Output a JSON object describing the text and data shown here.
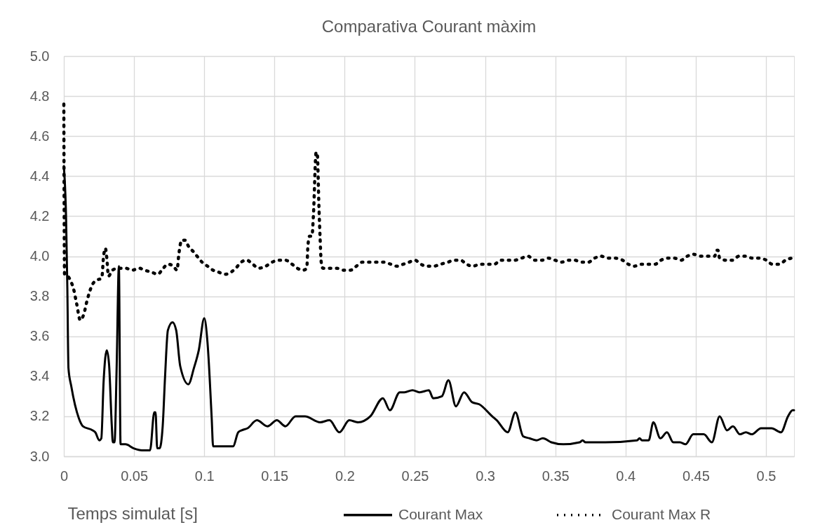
{
  "chart_data": {
    "type": "line",
    "title": "Comparativa Courant màxim",
    "xlabel": "Temps simulat [s]",
    "xlim": [
      0,
      0.52
    ],
    "xticks": [
      0,
      0.05,
      0.1,
      0.15,
      0.2,
      0.25,
      0.3,
      0.35,
      0.4,
      0.45,
      0.5
    ],
    "ylim": [
      3,
      5
    ],
    "yticks": [
      {
        "value": 3,
        "label": "3.0"
      },
      3.2,
      3.4,
      3.6,
      3.8,
      {
        "value": 4,
        "label": "4.0"
      },
      4.2,
      4.4,
      4.6,
      4.8,
      {
        "value": 5,
        "label": "5.0"
      }
    ],
    "grid": true,
    "legend": "bottom",
    "series": [
      {
        "name": "Courant Max",
        "color": "#000000",
        "line_style": "solid",
        "x": [
          0,
          0.0016,
          0.0025,
          0.0033,
          0.0053,
          0.0107,
          0.0136,
          0.0205,
          0.0224,
          0.0253,
          0.0267,
          0.0283,
          0.0306,
          0.0322,
          0.0341,
          0.0349,
          0.0361,
          0.0376,
          0.0392,
          0.0404,
          0.0439,
          0.0497,
          0.0556,
          0.0614,
          0.0644,
          0.0653,
          0.0665,
          0.0682,
          0.0704,
          0.0721,
          0.0741,
          0.0774,
          0.08,
          0.0829,
          0.0887,
          0.0926,
          0.0961,
          0.1,
          0.1023,
          0.1053,
          0.1063,
          0.1141,
          0.1205,
          0.1242,
          0.1267,
          0.1308,
          0.1375,
          0.145,
          0.1517,
          0.1578,
          0.165,
          0.1717,
          0.1825,
          0.1892,
          0.1962,
          0.2033,
          0.2095,
          0.2183,
          0.2272,
          0.2322,
          0.2392,
          0.2425,
          0.2483,
          0.2533,
          0.26,
          0.263,
          0.2692,
          0.2739,
          0.2792,
          0.285,
          0.2908,
          0.2958,
          0.305,
          0.3083,
          0.3161,
          0.3216,
          0.3271,
          0.3316,
          0.3366,
          0.3411,
          0.3471,
          0.3557,
          0.3674,
          0.3694,
          0.3715,
          0.3857,
          0.4082,
          0.41,
          0.4117,
          0.4165,
          0.4198,
          0.4248,
          0.4295,
          0.434,
          0.4387,
          0.4427,
          0.4482,
          0.4557,
          0.4615,
          0.467,
          0.4723,
          0.4765,
          0.4815,
          0.4857,
          0.4898,
          0.4965,
          0.504,
          0.5107,
          0.5157,
          0.519,
          0.52
        ],
        "values": [
          4.45,
          4.19,
          3.84,
          3.44,
          3.35,
          3.19,
          3.15,
          3.13,
          3.12,
          3.08,
          3.09,
          3.37,
          3.53,
          3.46,
          3.16,
          3.07,
          3.07,
          3.44,
          3.95,
          3.06,
          3.06,
          3.04,
          3.03,
          3.03,
          3.22,
          3.22,
          3.04,
          3.04,
          3.15,
          3.4,
          3.63,
          3.67,
          3.63,
          3.45,
          3.36,
          3.44,
          3.53,
          3.69,
          3.57,
          3.19,
          3.05,
          3.05,
          3.05,
          3.12,
          3.13,
          3.14,
          3.18,
          3.15,
          3.18,
          3.15,
          3.2,
          3.2,
          3.17,
          3.18,
          3.12,
          3.18,
          3.17,
          3.2,
          3.29,
          3.23,
          3.32,
          3.32,
          3.33,
          3.32,
          3.33,
          3.29,
          3.3,
          3.38,
          3.25,
          3.32,
          3.27,
          3.26,
          3.2,
          3.18,
          3.12,
          3.22,
          3.1,
          3.09,
          3.08,
          3.09,
          3.07,
          3.06,
          3.07,
          3.08,
          3.07,
          3.07,
          3.08,
          3.09,
          3.08,
          3.08,
          3.17,
          3.09,
          3.12,
          3.07,
          3.07,
          3.06,
          3.11,
          3.11,
          3.07,
          3.2,
          3.13,
          3.15,
          3.11,
          3.12,
          3.11,
          3.14,
          3.14,
          3.12,
          3.2,
          3.23,
          3.23
        ]
      },
      {
        "name": "Courant Max R",
        "color": "#000000",
        "line_style": "dotted",
        "x": [
          0,
          0.0005,
          0.0029,
          0.0053,
          0.0068,
          0.0092,
          0.0117,
          0.0142,
          0.0166,
          0.0205,
          0.0234,
          0.027,
          0.0283,
          0.0296,
          0.0306,
          0.0318,
          0.0345,
          0.039,
          0.0439,
          0.0487,
          0.0536,
          0.0575,
          0.0624,
          0.0669,
          0.0708,
          0.0741,
          0.078,
          0.0806,
          0.0819,
          0.0839,
          0.0864,
          0.0887,
          0.0926,
          0.0985,
          0.1024,
          0.1063,
          0.1102,
          0.1151,
          0.119,
          0.1225,
          0.1262,
          0.1303,
          0.1345,
          0.1388,
          0.1438,
          0.1483,
          0.1528,
          0.1578,
          0.1625,
          0.1662,
          0.1703,
          0.173,
          0.1738,
          0.175,
          0.1767,
          0.1777,
          0.1797,
          0.1805,
          0.1817,
          0.1825,
          0.1833,
          0.1845,
          0.1892,
          0.1942,
          0.1992,
          0.2042,
          0.2083,
          0.2125,
          0.2175,
          0.2225,
          0.2278,
          0.2328,
          0.2372,
          0.2417,
          0.2458,
          0.25,
          0.2542,
          0.2583,
          0.2633,
          0.2683,
          0.2734,
          0.2779,
          0.2825,
          0.2867,
          0.2913,
          0.2963,
          0.3017,
          0.3067,
          0.3108,
          0.3161,
          0.3211,
          0.3258,
          0.3305,
          0.3353,
          0.3403,
          0.345,
          0.3498,
          0.3543,
          0.3591,
          0.3637,
          0.3686,
          0.3734,
          0.3779,
          0.3825,
          0.3875,
          0.3927,
          0.3979,
          0.402,
          0.4062,
          0.411,
          0.416,
          0.421,
          0.4253,
          0.4298,
          0.4348,
          0.4395,
          0.444,
          0.4482,
          0.4532,
          0.4582,
          0.4635,
          0.4648,
          0.4658,
          0.467,
          0.4715,
          0.4762,
          0.4807,
          0.4857,
          0.4903,
          0.4953,
          0.5003,
          0.5045,
          0.5095,
          0.514,
          0.519,
          0.52
        ],
        "values": [
          4.76,
          3.91,
          3.9,
          3.87,
          3.84,
          3.76,
          3.68,
          3.71,
          3.78,
          3.86,
          3.88,
          3.89,
          4.0,
          4.04,
          3.99,
          3.9,
          3.93,
          3.94,
          3.94,
          3.93,
          3.94,
          3.93,
          3.92,
          3.91,
          3.94,
          3.96,
          3.95,
          3.93,
          4.01,
          4.08,
          4.08,
          4.05,
          4.02,
          3.97,
          3.95,
          3.93,
          3.92,
          3.91,
          3.92,
          3.94,
          3.97,
          3.98,
          3.96,
          3.94,
          3.95,
          3.97,
          3.98,
          3.98,
          3.96,
          3.94,
          3.93,
          3.94,
          4.05,
          4.1,
          4.1,
          4.2,
          4.52,
          4.51,
          4.24,
          4.09,
          3.97,
          3.94,
          3.94,
          3.94,
          3.93,
          3.93,
          3.95,
          3.97,
          3.97,
          3.97,
          3.97,
          3.96,
          3.95,
          3.96,
          3.97,
          3.98,
          3.96,
          3.95,
          3.95,
          3.96,
          3.97,
          3.98,
          3.98,
          3.96,
          3.95,
          3.96,
          3.96,
          3.96,
          3.98,
          3.98,
          3.98,
          3.99,
          4.0,
          3.98,
          3.98,
          3.99,
          3.98,
          3.97,
          3.98,
          3.98,
          3.97,
          3.97,
          3.99,
          4.0,
          3.99,
          3.99,
          3.98,
          3.96,
          3.95,
          3.96,
          3.96,
          3.96,
          3.98,
          3.99,
          3.99,
          3.98,
          4.0,
          4.01,
          4.0,
          4.0,
          4.0,
          4.03,
          4.03,
          3.99,
          3.98,
          3.98,
          4.0,
          4.0,
          3.99,
          3.99,
          3.98,
          3.96,
          3.96,
          3.98,
          3.99,
          3.99
        ]
      }
    ]
  }
}
